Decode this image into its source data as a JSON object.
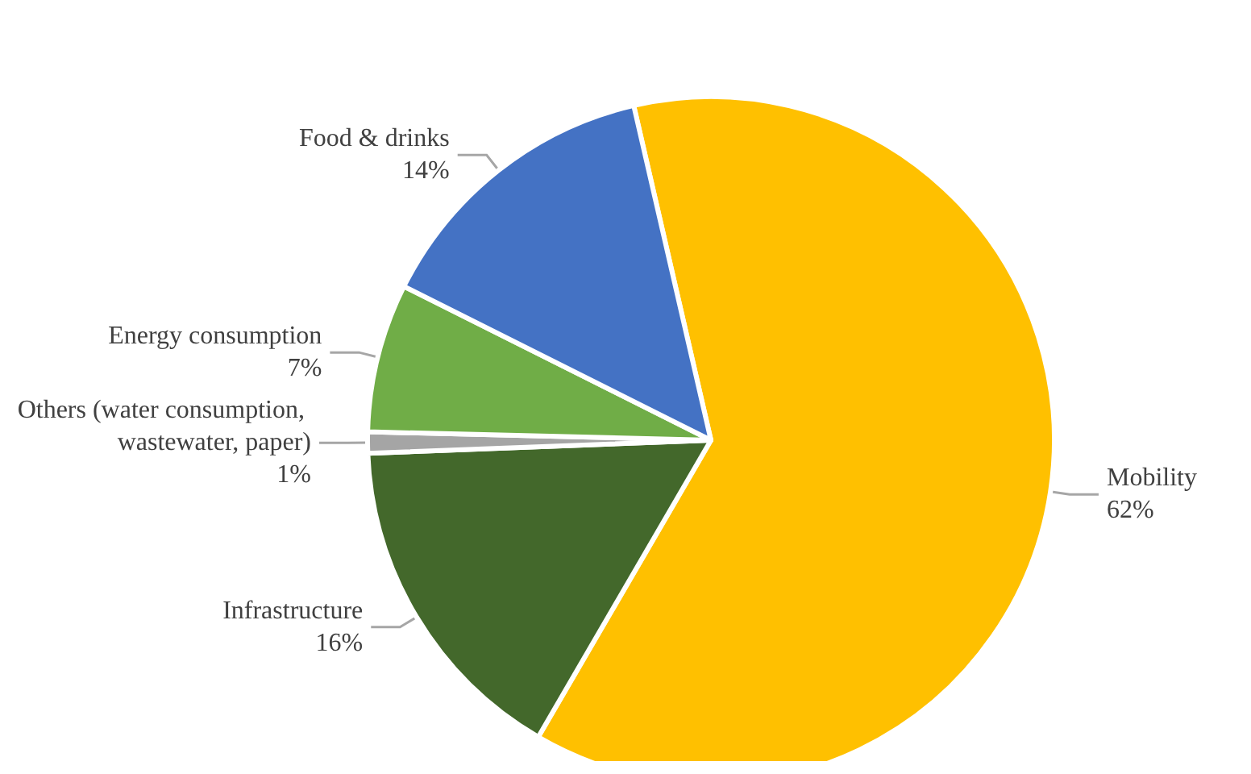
{
  "chart_data": {
    "type": "pie",
    "categories": [
      "Mobility",
      "Infrastructure",
      "Others (water consumption, wastewater, paper)",
      "Energy consumption",
      "Food & drinks"
    ],
    "values": [
      62,
      16,
      1,
      7,
      14
    ],
    "value_labels": [
      "62%",
      "16%",
      "1%",
      "7%",
      "14%"
    ],
    "colors": [
      "#ffc000",
      "#43682b",
      "#a5a5a5",
      "#70ad47",
      "#4472c4"
    ],
    "legend": false
  }
}
